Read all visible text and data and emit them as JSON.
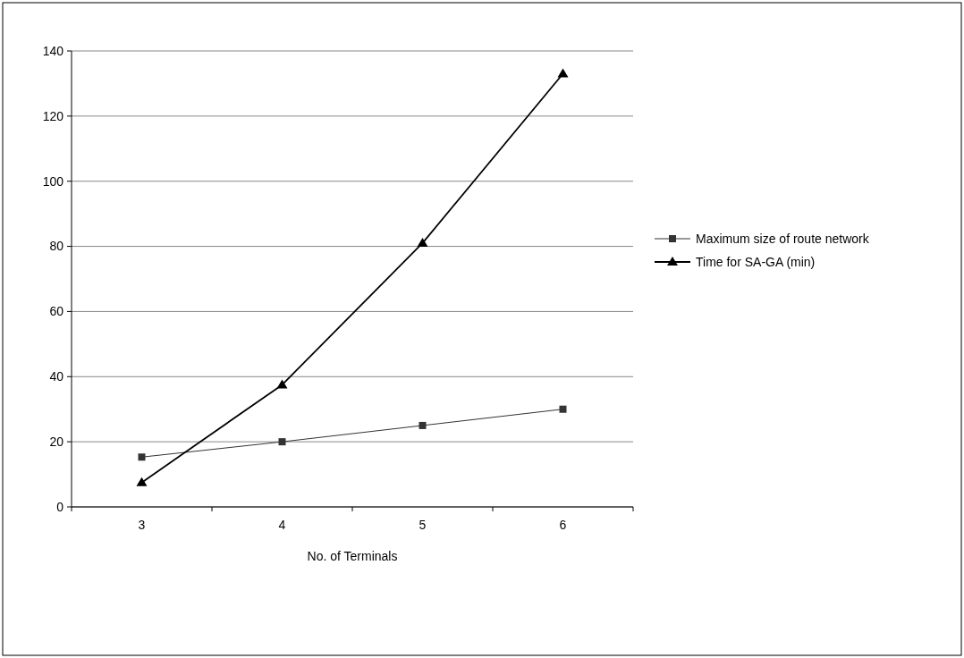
{
  "chart_data": {
    "type": "line",
    "xlabel": "No. of Terminals",
    "categories": [
      "3",
      "4",
      "5",
      "6"
    ],
    "series": [
      {
        "name": "Maximum size of route network",
        "color": "#333333",
        "values": [
          15.3,
          20,
          25,
          30
        ],
        "marker": "square"
      },
      {
        "name": "Time for SA-GA (min)",
        "color": "#000000",
        "values": [
          7.5,
          37.5,
          81,
          133
        ],
        "marker": "triangle"
      }
    ],
    "ylim": [
      0,
      140
    ],
    "yticks": [
      0,
      20,
      40,
      60,
      80,
      100,
      120,
      140
    ],
    "grid": "y",
    "legend": "right",
    "line_style": "solid"
  }
}
